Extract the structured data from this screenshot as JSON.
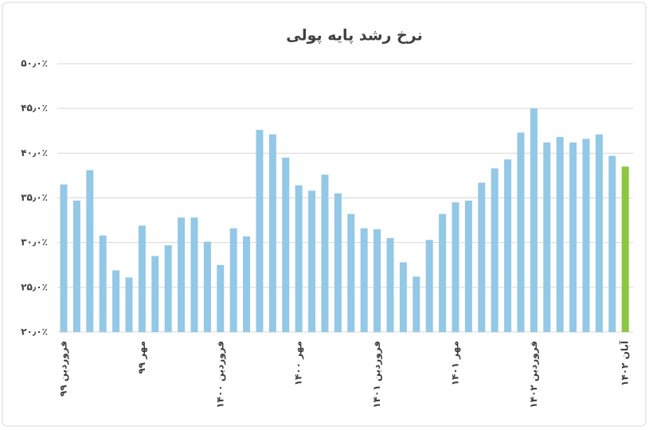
{
  "chart_data": {
    "type": "bar",
    "title": "نرخ رشد پایه پولی",
    "categories": [
      "فروردین ۹۹",
      null,
      null,
      null,
      null,
      null,
      "مهر ۹۹",
      null,
      null,
      null,
      null,
      null,
      "فروردین ۱۴۰۰",
      null,
      null,
      null,
      null,
      null,
      "مهر ۱۴۰۰",
      null,
      null,
      null,
      null,
      null,
      "فروردین ۱۴۰۱",
      null,
      null,
      null,
      null,
      null,
      "مهر ۱۴۰۱",
      null,
      null,
      null,
      null,
      null,
      "فروردین ۱۴۰۲",
      null,
      null,
      null,
      null,
      null,
      null,
      "آبان ۱۴۰۲"
    ],
    "values": [
      36.5,
      34.7,
      38.1,
      30.8,
      26.9,
      26.1,
      31.9,
      28.5,
      29.7,
      32.8,
      32.8,
      30.1,
      27.5,
      31.6,
      30.7,
      42.6,
      42.1,
      39.5,
      36.4,
      35.8,
      37.6,
      35.5,
      33.2,
      31.6,
      31.5,
      30.5,
      27.8,
      26.2,
      30.3,
      33.2,
      34.5,
      34.7,
      36.7,
      38.3,
      39.3,
      42.3,
      45.0,
      41.2,
      41.8,
      41.2,
      41.6,
      42.1,
      39.7,
      38.5
    ],
    "colors": [
      "#93c8e6",
      "#93c8e6",
      "#93c8e6",
      "#93c8e6",
      "#93c8e6",
      "#93c8e6",
      "#93c8e6",
      "#93c8e6",
      "#93c8e6",
      "#93c8e6",
      "#93c8e6",
      "#93c8e6",
      "#93c8e6",
      "#93c8e6",
      "#93c8e6",
      "#93c8e6",
      "#93c8e6",
      "#93c8e6",
      "#93c8e6",
      "#93c8e6",
      "#93c8e6",
      "#93c8e6",
      "#93c8e6",
      "#93c8e6",
      "#93c8e6",
      "#93c8e6",
      "#93c8e6",
      "#93c8e6",
      "#93c8e6",
      "#93c8e6",
      "#93c8e6",
      "#93c8e6",
      "#93c8e6",
      "#93c8e6",
      "#93c8e6",
      "#93c8e6",
      "#93c8e6",
      "#93c8e6",
      "#93c8e6",
      "#93c8e6",
      "#93c8e6",
      "#93c8e6",
      "#93c8e6",
      "#8dc63f"
    ],
    "ylim": [
      20,
      50
    ],
    "yticks": [
      {
        "value": 20,
        "label": "۲۰٫۰٪"
      },
      {
        "value": 25,
        "label": "۲۵٫۰٪"
      },
      {
        "value": 30,
        "label": "۳۰٫۰٪"
      },
      {
        "value": 35,
        "label": "۳۵٫۰٪"
      },
      {
        "value": 40,
        "label": "۴۰٫۰٪"
      },
      {
        "value": 45,
        "label": "۴۵٫۰٪"
      },
      {
        "value": 50,
        "label": "۵۰٫۰٪"
      }
    ],
    "grid": true
  }
}
